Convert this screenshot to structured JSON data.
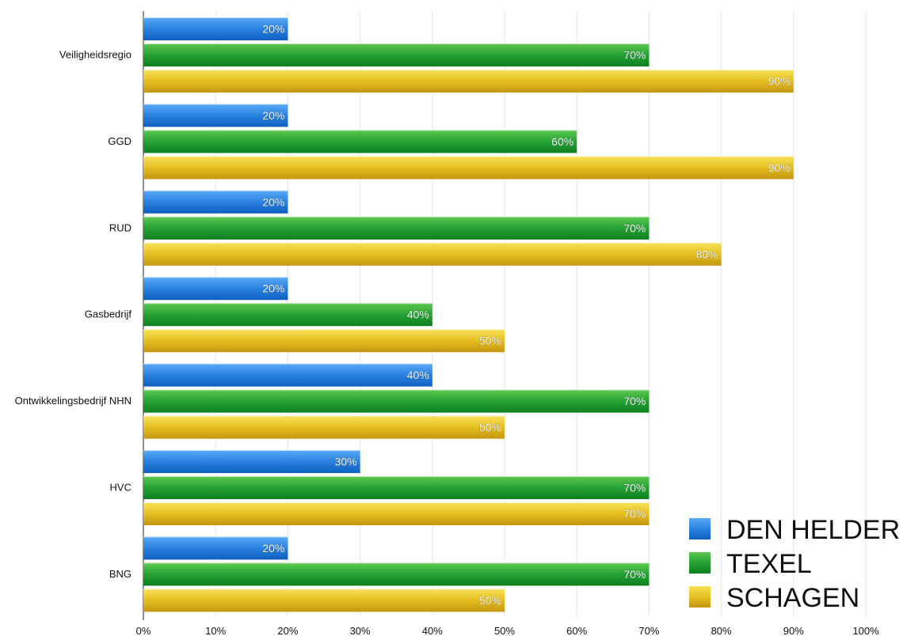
{
  "chart_data": {
    "type": "bar",
    "orientation": "horizontal",
    "categories": [
      "Veiligheidsregio",
      "GGD",
      "RUD",
      "Gasbedrijf",
      "Ontwikkelingsbedrijf NHN",
      "HVC",
      "BNG"
    ],
    "series": [
      {
        "name": "DEN HELDER",
        "color": "#1a73d9",
        "values": [
          20,
          20,
          20,
          20,
          40,
          30,
          20
        ]
      },
      {
        "name": "TEXEL",
        "color": "#1e9a2c",
        "values": [
          70,
          60,
          70,
          40,
          70,
          70,
          70
        ]
      },
      {
        "name": "SCHAGEN",
        "color": "#e0b21a",
        "values": [
          90,
          90,
          80,
          50,
          50,
          70,
          50
        ]
      }
    ],
    "xlim": [
      0,
      100
    ],
    "x_ticks": [
      "0%",
      "10%",
      "20%",
      "30%",
      "40%",
      "50%",
      "60%",
      "70%",
      "80%",
      "90%",
      "100%"
    ],
    "value_suffix": "%",
    "grid": true,
    "legend_position": "bottom-right",
    "title": "",
    "xlabel": "",
    "ylabel": ""
  }
}
